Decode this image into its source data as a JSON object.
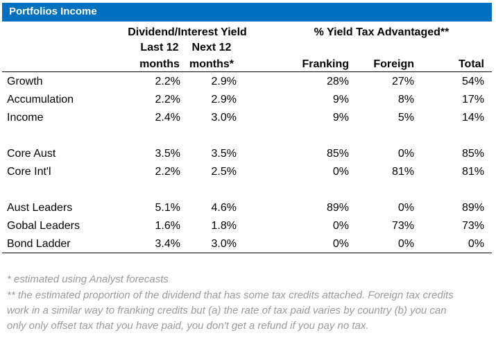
{
  "title": "Portfolios Income",
  "headers": {
    "group_yield": "Dividend/Interest Yield",
    "group_tax": "% Yield Tax Advantaged**",
    "last12_line1": "Last 12",
    "last12_line2": "months",
    "next12_line1": "Next 12",
    "next12_line2": "months*",
    "franking": "Franking",
    "foreign": "Foreign",
    "total": "Total"
  },
  "rows": [
    {
      "name": "Growth",
      "last12": "2.2%",
      "next12": "2.9%",
      "franking": "28%",
      "foreign": "27%",
      "total": "54%"
    },
    {
      "name": "Accumulation",
      "last12": "2.2%",
      "next12": "2.9%",
      "franking": "9%",
      "foreign": "8%",
      "total": "17%"
    },
    {
      "name": "Income",
      "last12": "2.4%",
      "next12": "3.0%",
      "franking": "9%",
      "foreign": "5%",
      "total": "14%"
    },
    {
      "name": "Core Aust",
      "last12": "3.5%",
      "next12": "3.5%",
      "franking": "85%",
      "foreign": "0%",
      "total": "85%"
    },
    {
      "name": "Core Int'l",
      "last12": "2.2%",
      "next12": "2.5%",
      "franking": "0%",
      "foreign": "81%",
      "total": "81%"
    },
    {
      "name": "Aust Leaders",
      "last12": "5.1%",
      "next12": "4.6%",
      "franking": "89%",
      "foreign": "0%",
      "total": "89%"
    },
    {
      "name": "Gobal Leaders",
      "last12": "1.6%",
      "next12": "1.8%",
      "franking": "0%",
      "foreign": "73%",
      "total": "73%"
    },
    {
      "name": "Bond Ladder",
      "last12": "3.4%",
      "next12": "3.0%",
      "franking": "0%",
      "foreign": "0%",
      "total": "0%"
    }
  ],
  "notes": {
    "note1": "* estimated using Analyst forecasts",
    "note2_line1": "**  the estimated proportion of the dividend that has some tax credits attached. Foreign tax credits",
    "note2_line2": "work in a similar way to franking credits but (a) the rate of tax paid varies by country (b) you can",
    "note2_line3": "only only offset tax that you have paid, you don't get a refund if you pay no tax."
  }
}
